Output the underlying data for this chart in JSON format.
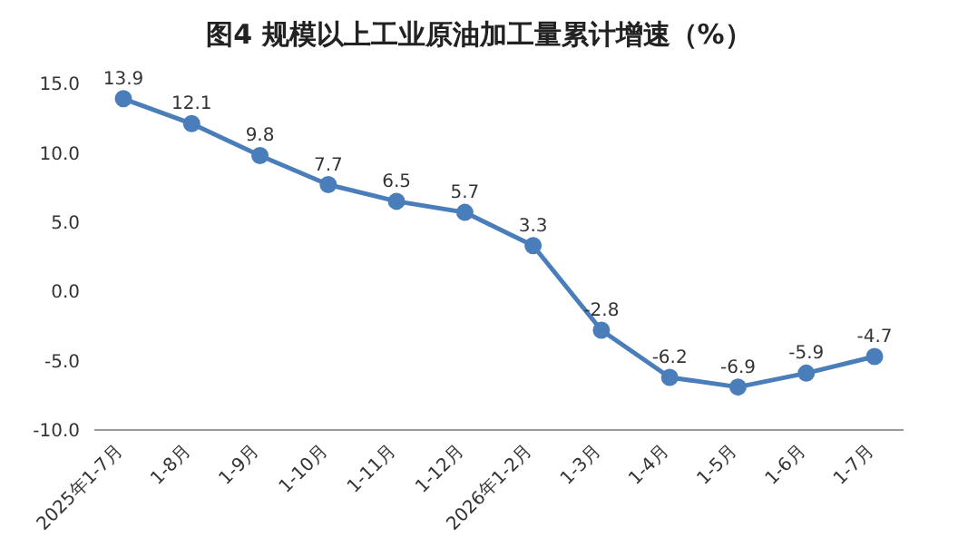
{
  "chart_data": {
    "type": "line",
    "title": "图4 规模以上工业原油加工量累计增速（%）",
    "categories": [
      "2025年1-7月",
      "1-8月",
      "1-9月",
      "1-10月",
      "1-11月",
      "1-12月",
      "2026年1-2月",
      "1-3月",
      "1-4月",
      "1-5月",
      "1-6月",
      "1-7月"
    ],
    "series": [
      {
        "color": "#4a7ebb",
        "values": [
          13.9,
          12.1,
          9.8,
          7.7,
          6.5,
          5.7,
          3.3,
          -2.8,
          -6.2,
          -6.9,
          -5.9,
          -4.7
        ]
      }
    ],
    "ylim": [
      -10,
      15
    ],
    "yticks": [
      {
        "value": -10,
        "label": "-10.0"
      },
      {
        "value": -5,
        "label": "-5.0"
      },
      {
        "value": 0,
        "label": "0.0"
      },
      {
        "value": 5,
        "label": "5.0"
      },
      {
        "value": 10,
        "label": "10.0"
      },
      {
        "value": 15,
        "label": "15.0"
      }
    ],
    "data_labels": true,
    "grid": false,
    "legend": false,
    "marker": "circle",
    "line_style": "solid"
  }
}
